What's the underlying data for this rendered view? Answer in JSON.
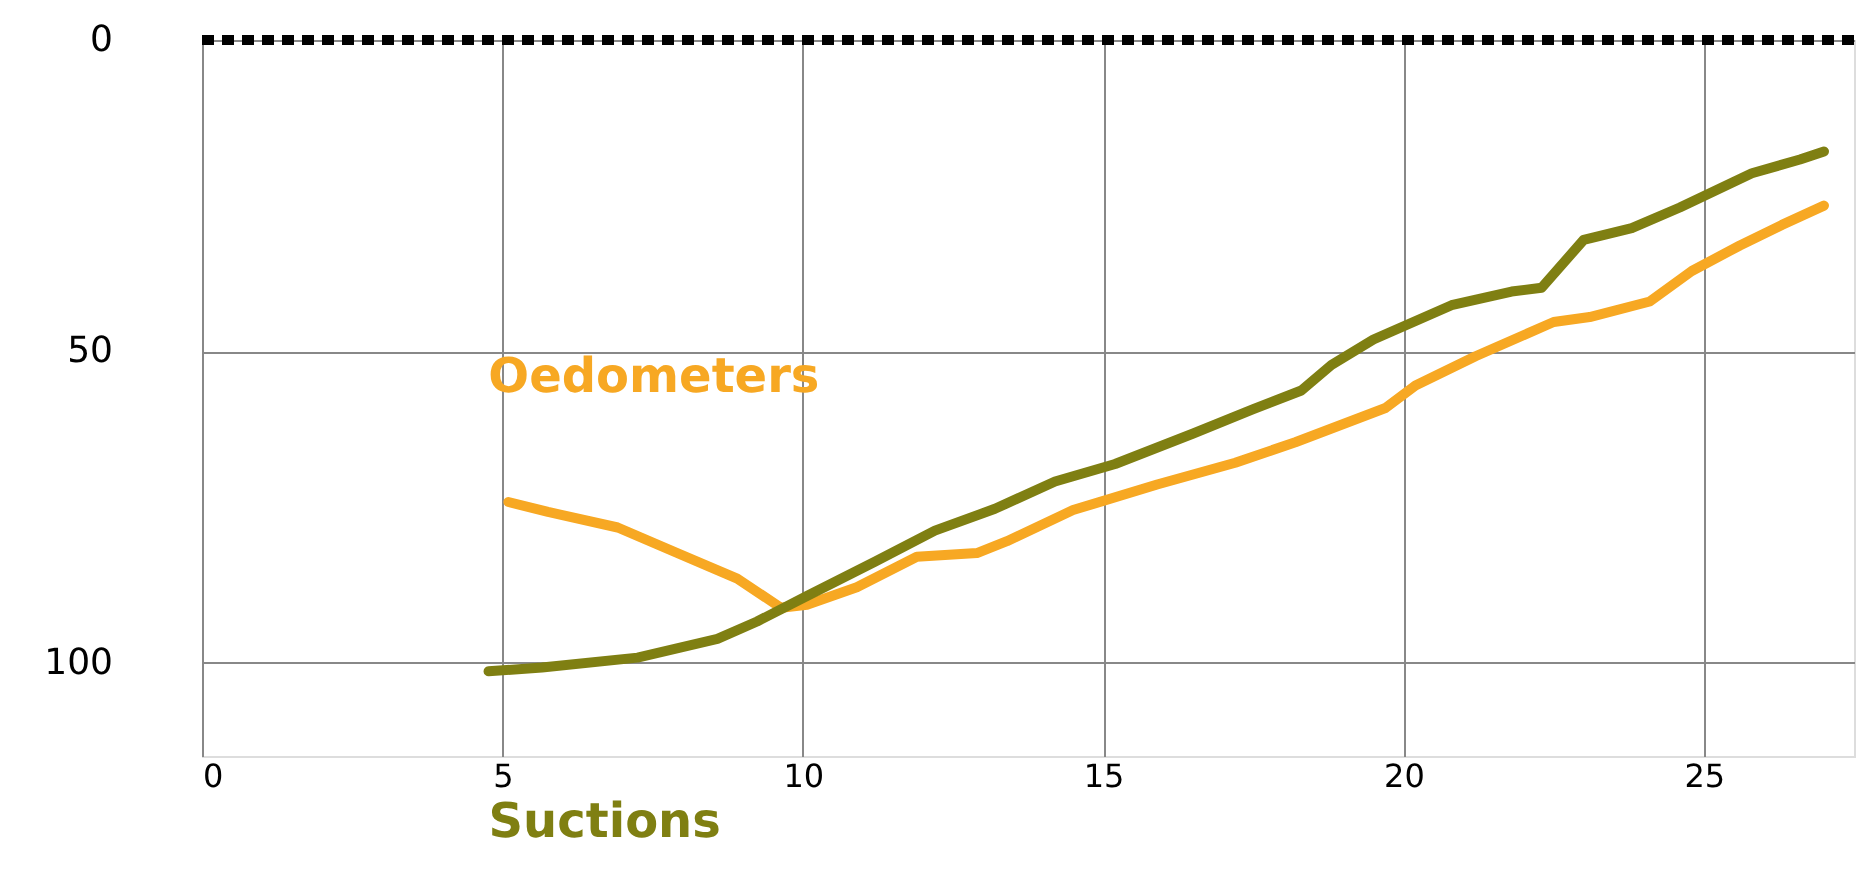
{
  "chart_data": {
    "type": "line",
    "xlim": [
      0,
      27.5
    ],
    "ylim": [
      115,
      0
    ],
    "xticks": [
      0,
      5,
      10,
      15,
      20,
      25
    ],
    "yticks": [
      0,
      50,
      100
    ],
    "grid": true,
    "marker": "none",
    "line_style": "solid",
    "ref_lines": [
      {
        "axis": "y",
        "value": 0,
        "line_style": "dashed",
        "color": "#000000"
      }
    ],
    "series": [
      {
        "name": "Oedometers",
        "color": "#f7a823",
        "x": [
          5.1,
          5.76,
          6.92,
          7.91,
          8.91,
          9.64,
          10.07,
          10.9,
          11.9,
          12.9,
          13.4,
          14.5,
          15.9,
          17.2,
          18.2,
          19.7,
          20.2,
          21.2,
          22.5,
          23.1,
          24.1,
          24.8,
          25.6,
          26.3,
          27.0
        ],
        "values": [
          74.2,
          75.8,
          78.3,
          82.4,
          86.5,
          91.2,
          90.7,
          87.9,
          83.0,
          82.4,
          80.5,
          75.5,
          71.4,
          67.9,
          64.6,
          59.1,
          55.5,
          50.8,
          45.3,
          44.5,
          42.0,
          37.1,
          33.0,
          29.7,
          26.6
        ]
      },
      {
        "name": "Suctions",
        "color": "#7f7f12",
        "x": [
          4.77,
          5.66,
          7.25,
          8.58,
          9.24,
          10.07,
          11.2,
          12.2,
          13.2,
          14.2,
          15.2,
          16.5,
          17.5,
          18.3,
          18.8,
          19.5,
          20.8,
          21.8,
          22.3,
          23.0,
          23.8,
          24.6,
          25.8,
          26.6,
          27.0
        ],
        "values": [
          101.4,
          100.8,
          99.2,
          96.2,
          93.4,
          89.3,
          83.8,
          78.8,
          75.3,
          70.9,
          68.1,
          63.2,
          59.3,
          56.3,
          52.2,
          48.1,
          42.6,
          40.4,
          39.8,
          32.1,
          30.2,
          26.9,
          21.4,
          19.2,
          17.9
        ]
      }
    ]
  }
}
